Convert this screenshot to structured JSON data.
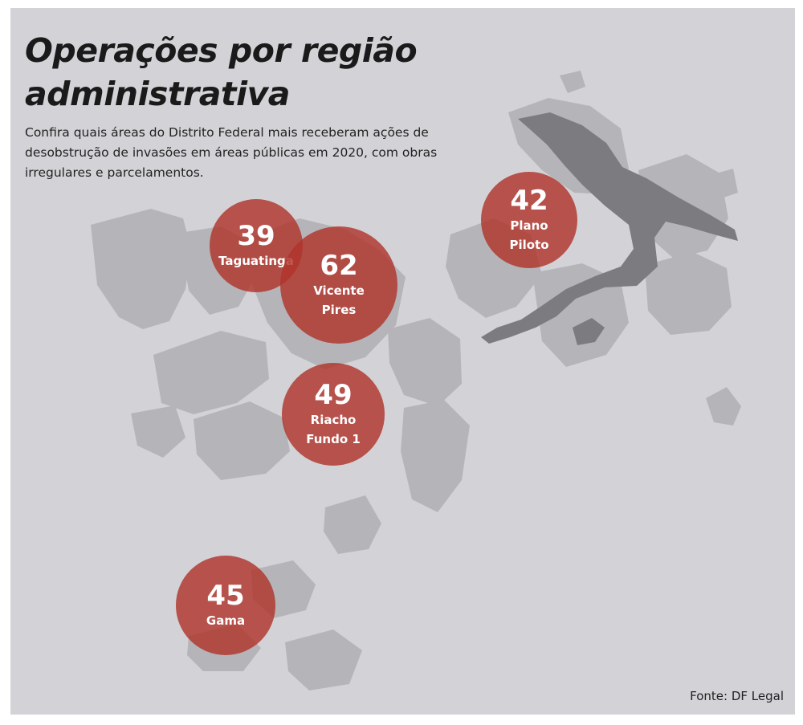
{
  "title": {
    "line1": "Operações por região",
    "line2": "administrativa"
  },
  "subtitle": "Confira quais áreas do Distrito Federal mais receberam ações de desobstrução de invasões em áreas públicas em 2020, com obras irregulares e parcelamentos.",
  "source": "Fonte: DF Legal",
  "colors": {
    "background": "#d3d3d7",
    "land": "#b5b5b9",
    "lake": "#7b7b80",
    "bubble": "#b0342c"
  },
  "regions": [
    {
      "name": "Taguatinga",
      "value": "39"
    },
    {
      "name": "Vicente\nPires",
      "value": "62"
    },
    {
      "name": "Plano\nPiloto",
      "value": "42"
    },
    {
      "name": "Riacho\nFundo 1",
      "value": "49"
    },
    {
      "name": "Gama",
      "value": "45"
    }
  ]
}
